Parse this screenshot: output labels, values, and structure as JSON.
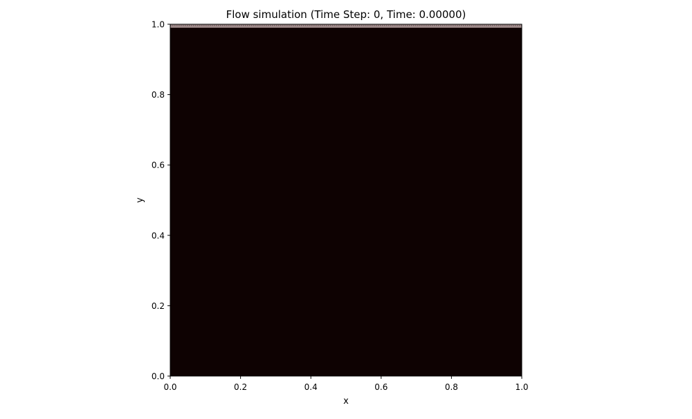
{
  "chart_data": {
    "type": "heatmap",
    "title": "Flow simulation (Time Step: 0, Time: 0.00000)",
    "xlabel": "x",
    "ylabel": "y",
    "xlim": [
      0.0,
      1.0
    ],
    "ylim": [
      0.0,
      1.0
    ],
    "x_ticks": [
      "0.0",
      "0.2",
      "0.4",
      "0.6",
      "0.8",
      "1.0"
    ],
    "y_ticks": [
      "0.0",
      "0.2",
      "0.4",
      "0.6",
      "0.8",
      "1.0"
    ],
    "grid": false,
    "legend": "none",
    "field": {
      "background_color": "#0e0202",
      "top_boundary_band": {
        "y_range": [
          0.99,
          1.0
        ],
        "color": "#a08c8c",
        "pattern": "alternating-light-dark"
      }
    }
  }
}
